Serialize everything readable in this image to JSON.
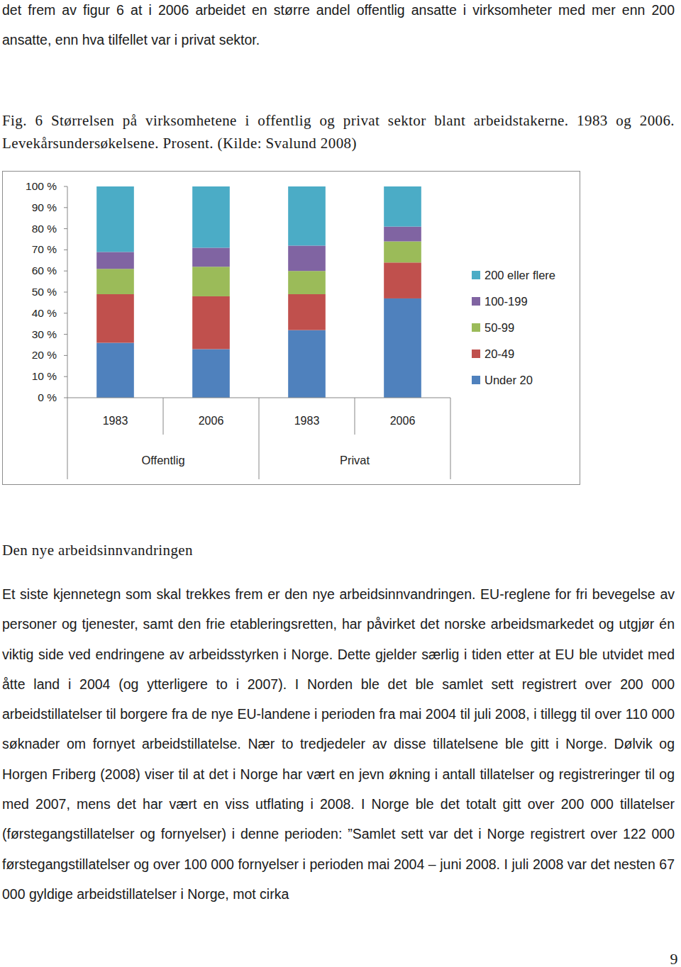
{
  "chart_data": {
    "type": "bar",
    "stacked": true,
    "title": "Fig. 6 Størrelsen på virksomhetene i offentlig og privat sektor blant arbeidstakerne. 1983 og 2006. Levekårsundersøkelsene. Prosent. (Kilde: Svalund 2008)",
    "categories": [
      "1983",
      "2006",
      "1983",
      "2006"
    ],
    "group_labels": [
      "Offentlig",
      "Privat"
    ],
    "series": [
      {
        "name": "Under 20",
        "color": "#4f81bd",
        "values": [
          26,
          23,
          32,
          47
        ]
      },
      {
        "name": "20-49",
        "color": "#c0504d",
        "values": [
          23,
          25,
          17,
          17
        ]
      },
      {
        "name": "50-99",
        "color": "#9bbb59",
        "values": [
          12,
          14,
          11,
          10
        ]
      },
      {
        "name": "100-199",
        "color": "#8064a2",
        "values": [
          8,
          9,
          12,
          7
        ]
      },
      {
        "name": "200 eller flere",
        "color": "#4bacc6",
        "values": [
          31,
          29,
          28,
          19
        ]
      }
    ],
    "ylim": [
      0,
      100
    ],
    "yticks": [
      {
        "value": 0,
        "label": "0 %"
      },
      {
        "value": 10,
        "label": "10 %"
      },
      {
        "value": 20,
        "label": "20 %"
      },
      {
        "value": 30,
        "label": "30 %"
      },
      {
        "value": 40,
        "label": "40 %"
      },
      {
        "value": 50,
        "label": "50 %"
      },
      {
        "value": 60,
        "label": "60 %"
      },
      {
        "value": 70,
        "label": "70 %"
      },
      {
        "value": 80,
        "label": "80 %"
      },
      {
        "value": 90,
        "label": "90 %"
      },
      {
        "value": 100,
        "label": "100 %"
      }
    ],
    "grid": false,
    "legend": "right"
  },
  "page": {
    "intro": "det frem av figur 6 at i 2006 arbeidet en større andel offentlig ansatte i virksomheter med mer enn 200 ansatte, enn hva tilfellet var i privat sektor.",
    "heading": "Den nye arbeidsinnvandringen",
    "paragraph": "Et siste kjennetegn som skal trekkes frem er den nye arbeidsinnvandringen. EU-reglene for fri bevegelse av personer og tjenester, samt den frie etableringsretten, har påvirket det norske arbeidsmarkedet og utgjør én viktig side ved endringene av arbeidsstyrken i Norge. Dette gjelder særlig i tiden etter at EU ble utvidet med åtte land i 2004 (og ytterligere to i 2007). I Norden ble det ble samlet sett registrert over 200 000 arbeidstillatelser til borgere fra de nye EU-landene i perioden fra mai 2004 til juli 2008, i tillegg til over 110 000 søknader om fornyet arbeidstillatelse. Nær to tredjedeler av disse tillatelsene ble gitt i Norge. Dølvik og Horgen Friberg (2008) viser til at det i Norge har vært en jevn økning i antall tillatelser og registreringer til og med 2007, mens det har vært en viss utflating i 2008. I Norge ble det totalt gitt over 200 000 tillatelser (førstegangstillatelser og fornyelser) i denne perioden: ”Samlet sett var det i Norge registrert over 122 000 førstegangstillatelser og over 100 000 fornyelser i perioden mai 2004 – juni 2008. I juli 2008 var det nesten 67 000 gyldige arbeidstillatelser i Norge, mot cirka",
    "page_number": "9"
  }
}
